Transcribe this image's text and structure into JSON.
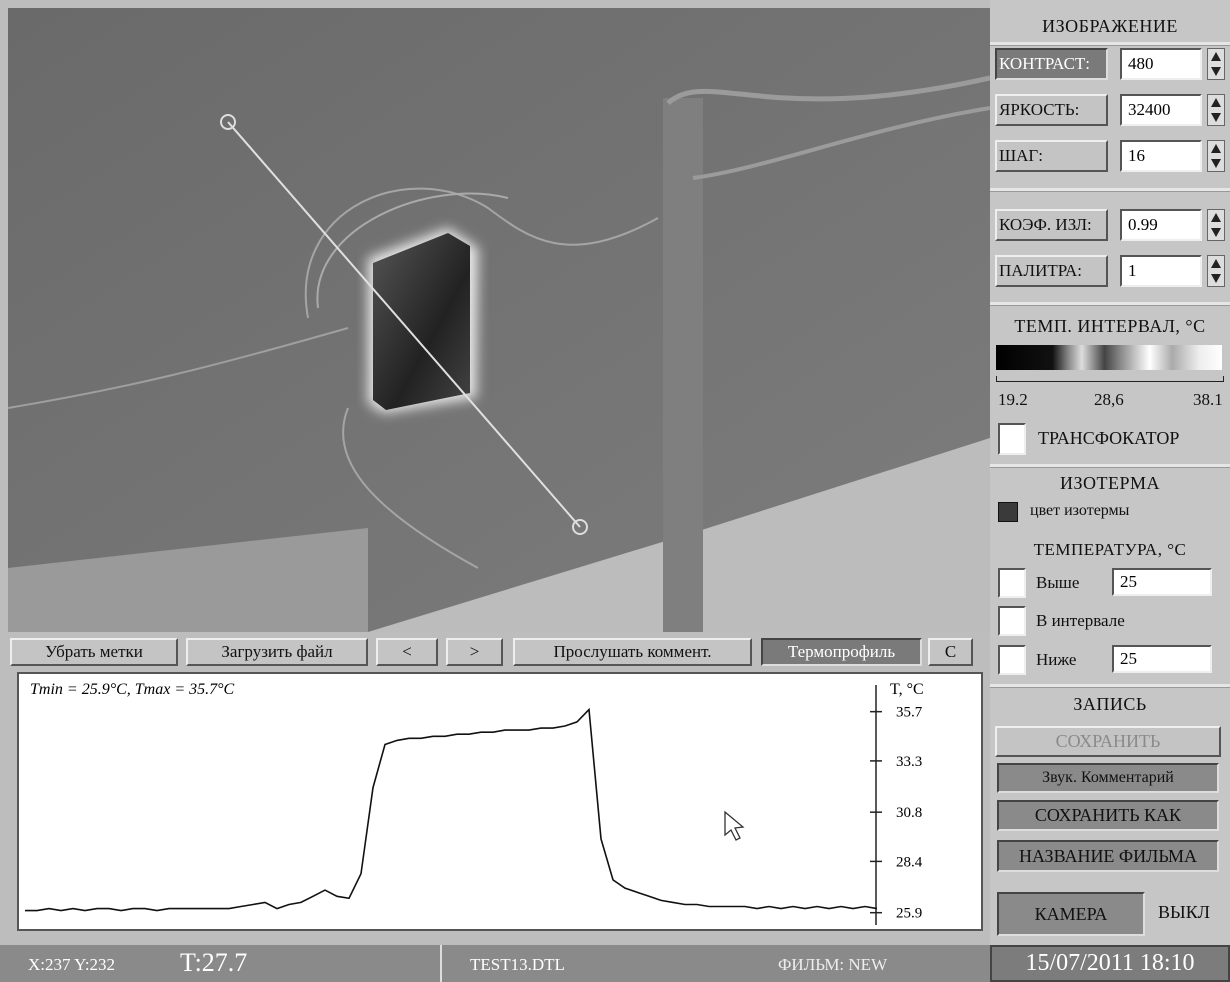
{
  "toolbar": [
    "Убрать метки",
    "Загрузить файл",
    "<",
    ">",
    "Прослушать коммент.",
    "Термопрофиль",
    "C"
  ],
  "chart_data": {
    "type": "line",
    "annotation": "Tmin = 25.9°C, Tmax = 35.7°C",
    "y_label": "T, °C",
    "ylim": [
      25.3,
      37.0
    ],
    "yticks": [
      25.9,
      28.4,
      30.8,
      33.3,
      35.7
    ],
    "color": "#111111",
    "values": [
      26.0,
      26.0,
      26.1,
      26.0,
      26.1,
      26.0,
      26.1,
      26.1,
      26.0,
      26.1,
      26.1,
      26.0,
      26.1,
      26.1,
      26.1,
      26.1,
      26.1,
      26.1,
      26.2,
      26.3,
      26.4,
      26.1,
      26.3,
      26.4,
      26.7,
      27.0,
      26.7,
      26.6,
      27.8,
      32.0,
      34.1,
      34.3,
      34.4,
      34.4,
      34.5,
      34.5,
      34.6,
      34.6,
      34.7,
      34.7,
      34.8,
      34.8,
      34.8,
      34.9,
      34.9,
      35.0,
      35.2,
      35.8,
      29.5,
      27.5,
      27.1,
      26.9,
      26.7,
      26.5,
      26.4,
      26.3,
      26.3,
      26.2,
      26.2,
      26.2,
      26.2,
      26.1,
      26.2,
      26.1,
      26.2,
      26.1,
      26.2,
      26.1,
      26.2,
      26.1,
      26.2,
      26.1
    ]
  },
  "status": {
    "coords": "X:237  Y:232",
    "temp": "T:27.7",
    "file": "TEST13.DTL",
    "film": "ФИЛЬМ: NEW",
    "datetime": "15/07/2011 18:10"
  },
  "panel": {
    "image_title": "ИЗОБРАЖЕНИЕ",
    "controls": [
      {
        "label": "КОНТРАСТ:",
        "value": 480
      },
      {
        "label": "ЯРКОСТЬ:",
        "value": 32400
      },
      {
        "label": "ШАГ:",
        "value": 16
      },
      {
        "label": "КОЭФ. ИЗЛ:",
        "value": 0.99
      },
      {
        "label": "ПАЛИТРА:",
        "value": 1
      }
    ],
    "range_title": "ТЕМП. ИНТЕРВАЛ, °C",
    "range_labels": [
      "19.2",
      "28,6",
      "38.1"
    ],
    "zoom": "ТРАНСФОКАТОР",
    "isotherm_title": "ИЗОТЕРМА",
    "isotherm_color": "цвет изотермы",
    "temperature_title": "ТЕМПЕРАТУРА, °C",
    "above": {
      "label": "Выше",
      "value": 25
    },
    "between": "В интервале",
    "below": {
      "label": "Ниже",
      "value": 25
    },
    "record_title": "ЗАПИСЬ",
    "record_buttons": [
      "СОХРАНИТЬ",
      "Звук. Комментарий",
      "СОХРАНИТЬ КАК",
      "НАЗВАНИЕ ФИЛЬМА"
    ],
    "camera": "КАМЕРА",
    "camera_state": "ВЫКЛ"
  }
}
